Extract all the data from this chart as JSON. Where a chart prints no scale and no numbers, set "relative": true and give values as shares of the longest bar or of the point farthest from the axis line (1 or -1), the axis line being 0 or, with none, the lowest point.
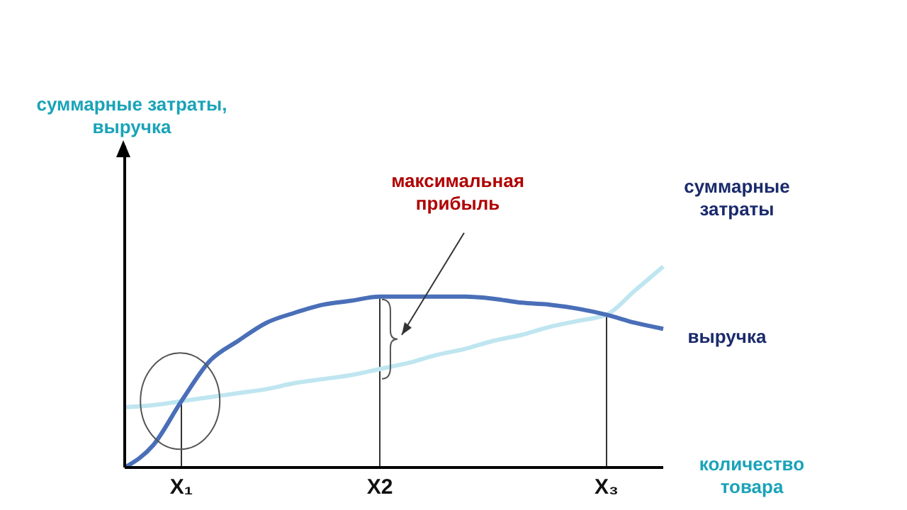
{
  "chart_data": {
    "type": "line",
    "relative": true,
    "xlabel": "количество товара",
    "categories": [
      null,
      null,
      "X₁",
      null,
      null,
      null,
      null,
      null,
      null,
      "X2",
      null,
      null,
      null,
      null,
      null,
      null,
      null,
      "X₃",
      null,
      null
    ],
    "series": [
      {
        "name": "суммарные затраты",
        "color": "#bfe6f0",
        "values": [
          0.3,
          0.31,
          0.33,
          0.35,
          0.37,
          0.39,
          0.42,
          0.44,
          0.46,
          0.49,
          0.52,
          0.56,
          0.59,
          0.63,
          0.66,
          0.7,
          0.73,
          0.76,
          0.88,
          1.0
        ]
      },
      {
        "name": "выручка",
        "color": "#4a6fb8",
        "values": [
          0,
          0.11,
          0.33,
          0.53,
          0.63,
          0.72,
          0.77,
          0.81,
          0.83,
          0.85,
          0.85,
          0.85,
          0.85,
          0.84,
          0.82,
          0.81,
          0.79,
          0.76,
          0.72,
          0.69
        ]
      }
    ],
    "ref_lines": [
      {
        "axis": "x",
        "value": "X₁"
      },
      {
        "axis": "x",
        "value": "X2"
      },
      {
        "axis": "x",
        "value": "X₃"
      }
    ],
    "annotations": [
      "максимальная прибыль",
      "суммарные затраты, выручка"
    ],
    "grid": false,
    "marker": "none",
    "line_style": "solid"
  }
}
